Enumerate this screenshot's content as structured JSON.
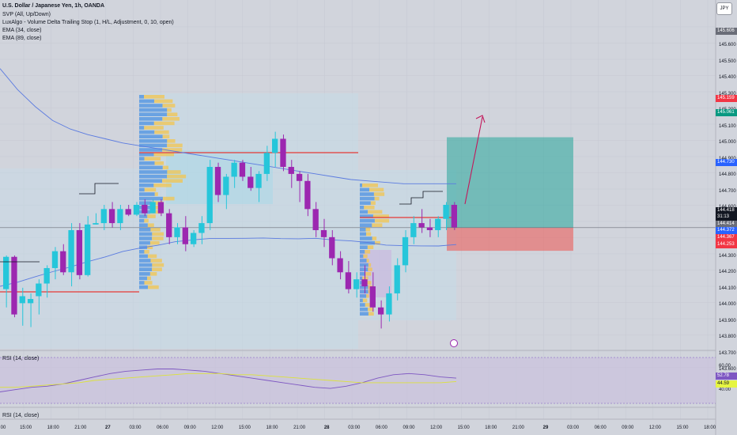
{
  "legend": {
    "title": "U.S. Dollar / Japanese Yen, 1h, OANDA",
    "line1": "SVP (All, Up/Down)",
    "line2": "LuxAlgo - Volume Delta Trailing Stop (1, H/L, Adjustment, 0, 10, open)",
    "line3": "EMA (34, close)",
    "line4": "EMA (89, close)"
  },
  "symbol_badge": "JPY",
  "price_axis": {
    "ticks": [
      "145.600",
      "145.500",
      "145.400",
      "145.300",
      "145.200",
      "145.100",
      "145.000",
      "144.900",
      "144.800",
      "144.700",
      "144.600",
      "144.500",
      "144.400",
      "144.300",
      "144.200",
      "144.100",
      "144.000",
      "143.900",
      "143.800",
      "143.700",
      "143.600",
      "143.500"
    ],
    "tags": [
      {
        "text": "145.606",
        "color": "#6a6d78"
      },
      {
        "text": "145.159",
        "color": "#f23645"
      },
      {
        "text": "145.061",
        "color": "#089981"
      },
      {
        "text": "144.730",
        "color": "#2962ff"
      },
      {
        "text": "144.418",
        "color": "#131722"
      },
      {
        "text": "31:13",
        "color": "#131722"
      },
      {
        "text": "144.414",
        "color": "#6a6d78"
      },
      {
        "text": "144.372",
        "color": "#2962ff"
      },
      {
        "text": "144.367",
        "color": "#f23645"
      },
      {
        "text": "144.253",
        "color": "#f23645"
      }
    ]
  },
  "time_axis": [
    {
      "text": "00",
      "bold": false
    },
    {
      "text": "15:00",
      "bold": false
    },
    {
      "text": "18:00",
      "bold": false
    },
    {
      "text": "21:00",
      "bold": false
    },
    {
      "text": "27",
      "bold": true
    },
    {
      "text": "03:00",
      "bold": false
    },
    {
      "text": "06:00",
      "bold": false
    },
    {
      "text": "09:00",
      "bold": false
    },
    {
      "text": "12:00",
      "bold": false
    },
    {
      "text": "15:00",
      "bold": false
    },
    {
      "text": "18:00",
      "bold": false
    },
    {
      "text": "21:00",
      "bold": false
    },
    {
      "text": "28",
      "bold": true
    },
    {
      "text": "03:00",
      "bold": false
    },
    {
      "text": "06:00",
      "bold": false
    },
    {
      "text": "09:00",
      "bold": false
    },
    {
      "text": "12:00",
      "bold": false
    },
    {
      "text": "15:00",
      "bold": false
    },
    {
      "text": "18:00",
      "bold": false
    },
    {
      "text": "21:00",
      "bold": false
    },
    {
      "text": "29",
      "bold": true
    },
    {
      "text": "03:00",
      "bold": false
    },
    {
      "text": "06:00",
      "bold": false
    },
    {
      "text": "09:00",
      "bold": false
    },
    {
      "text": "12:00",
      "bold": false
    },
    {
      "text": "15:00",
      "bold": false
    },
    {
      "text": "18:00",
      "bold": false
    }
  ],
  "rsi_pane": {
    "label": "RSI (14, close)",
    "ticks": [
      "60.00",
      "40.00"
    ],
    "tags": [
      {
        "text": "52.78",
        "color": "#7e57c2"
      },
      {
        "text": "44.59",
        "color": "#e6f542"
      }
    ]
  },
  "rsi_pane2": {
    "label": "RSI (14, close)"
  },
  "colors": {
    "up": "#26c6da",
    "down": "#9c27b0",
    "ema34": "#5b7be0",
    "ema89": "#5b7be0",
    "svp_up": "#4a90e2",
    "svp_down": "#f6c444",
    "red_line": "#e53935",
    "target_zone": "#26a69a",
    "stop_zone": "#ef5350"
  },
  "chart_data": {
    "type": "candlestick",
    "symbol": "USDJPY",
    "interval": "1h",
    "ylim": [
      143.55,
      145.7
    ],
    "candles": [
      [
        143.98,
        144.22,
        143.85,
        144.21
      ],
      [
        144.21,
        144.22,
        143.78,
        143.8
      ],
      [
        143.88,
        143.99,
        143.72,
        143.93
      ],
      [
        143.88,
        143.95,
        143.71,
        143.91
      ],
      [
        143.93,
        144.05,
        143.8,
        144.02
      ],
      [
        144.02,
        144.15,
        143.92,
        144.13
      ],
      [
        144.13,
        144.28,
        144.05,
        144.25
      ],
      [
        144.25,
        144.3,
        144.08,
        144.1
      ],
      [
        144.1,
        144.45,
        144.0,
        144.4
      ],
      [
        144.4,
        144.45,
        144.05,
        144.08
      ],
      [
        144.08,
        144.5,
        144.07,
        144.44
      ],
      [
        144.44,
        144.52,
        144.44,
        144.45
      ],
      [
        144.45,
        144.58,
        144.4,
        144.55
      ],
      [
        144.55,
        144.6,
        144.42,
        144.45
      ],
      [
        144.45,
        144.58,
        144.4,
        144.55
      ],
      [
        144.55,
        144.58,
        144.5,
        144.51
      ],
      [
        144.51,
        144.6,
        144.5,
        144.58
      ],
      [
        144.58,
        144.62,
        144.5,
        144.52
      ],
      [
        144.52,
        144.62,
        144.52,
        144.6
      ],
      [
        144.6,
        144.62,
        144.5,
        144.52
      ],
      [
        144.52,
        144.55,
        144.3,
        144.35
      ],
      [
        144.35,
        144.45,
        144.3,
        144.42
      ],
      [
        144.42,
        144.5,
        144.25,
        144.3
      ],
      [
        144.3,
        144.4,
        144.28,
        144.38
      ],
      [
        144.38,
        144.5,
        144.3,
        144.45
      ],
      [
        144.45,
        144.9,
        144.4,
        144.85
      ],
      [
        144.85,
        144.88,
        144.6,
        144.65
      ],
      [
        144.65,
        144.8,
        144.55,
        144.78
      ],
      [
        144.78,
        144.9,
        144.7,
        144.88
      ],
      [
        144.88,
        144.9,
        144.75,
        144.78
      ],
      [
        144.78,
        144.85,
        144.68,
        144.7
      ],
      [
        144.7,
        144.82,
        144.6,
        144.8
      ],
      [
        144.8,
        145.0,
        144.75,
        144.95
      ],
      [
        144.95,
        145.1,
        144.85,
        145.05
      ],
      [
        145.05,
        145.08,
        144.82,
        144.85
      ],
      [
        144.85,
        144.9,
        144.7,
        144.8
      ],
      [
        144.8,
        144.82,
        144.6,
        144.75
      ],
      [
        144.75,
        144.8,
        144.5,
        144.55
      ],
      [
        144.55,
        144.6,
        144.35,
        144.4
      ],
      [
        144.4,
        144.48,
        144.28,
        144.35
      ],
      [
        144.35,
        144.4,
        144.15,
        144.2
      ],
      [
        144.2,
        144.25,
        144.05,
        144.1
      ],
      [
        144.1,
        144.18,
        143.95,
        143.98
      ],
      [
        143.98,
        144.1,
        143.92,
        144.05
      ],
      [
        144.05,
        144.15,
        143.95,
        144.0
      ],
      [
        144.0,
        144.1,
        143.82,
        143.85
      ],
      [
        143.85,
        143.9,
        143.7,
        143.8
      ],
      [
        143.8,
        144.0,
        143.75,
        143.95
      ],
      [
        143.95,
        144.2,
        143.9,
        144.15
      ],
      [
        144.15,
        144.4,
        144.1,
        144.35
      ],
      [
        144.35,
        144.5,
        144.3,
        144.45
      ],
      [
        144.45,
        144.55,
        144.38,
        144.42
      ],
      [
        144.42,
        144.48,
        144.35,
        144.4
      ],
      [
        144.4,
        144.5,
        144.35,
        144.48
      ],
      [
        144.48,
        144.6,
        144.4,
        144.58
      ],
      [
        144.58,
        144.6,
        144.4,
        144.42
      ]
    ],
    "ema_34": [
      144.45,
      144.46,
      144.48,
      144.5,
      144.52,
      144.55,
      144.58,
      144.62,
      144.65,
      144.68,
      144.72,
      144.75,
      144.78,
      144.8,
      144.82,
      144.84,
      144.85,
      144.86,
      144.87,
      144.86,
      144.85,
      144.83,
      144.8,
      144.78,
      144.76,
      144.74,
      144.73
    ],
    "ema_89": [
      145.55,
      145.4,
      145.28,
      145.18,
      145.12,
      145.08,
      145.05,
      145.02,
      145.0,
      144.98,
      144.96,
      144.94,
      144.92,
      144.9,
      144.88,
      144.86,
      144.84,
      144.82,
      144.8,
      144.78,
      144.76,
      144.75,
      144.74,
      144.73,
      144.73,
      144.73,
      144.73
    ],
    "position": {
      "entry": 144.418,
      "target": 145.061,
      "stop": 144.253
    },
    "rsi": [
      40,
      42,
      44,
      45,
      47,
      50,
      53,
      56,
      58,
      59,
      60,
      60,
      59,
      58,
      56,
      54,
      52,
      50,
      48,
      46,
      44,
      43,
      45,
      48,
      52,
      55,
      56,
      55,
      53,
      52
    ],
    "rsi_signal": [
      44,
      44,
      45,
      46,
      47,
      48,
      50,
      51,
      52,
      53,
      54,
      55,
      56,
      56,
      56,
      55,
      55,
      54,
      53,
      52,
      51,
      50,
      49,
      48,
      48,
      48,
      48,
      48,
      48,
      49
    ]
  }
}
